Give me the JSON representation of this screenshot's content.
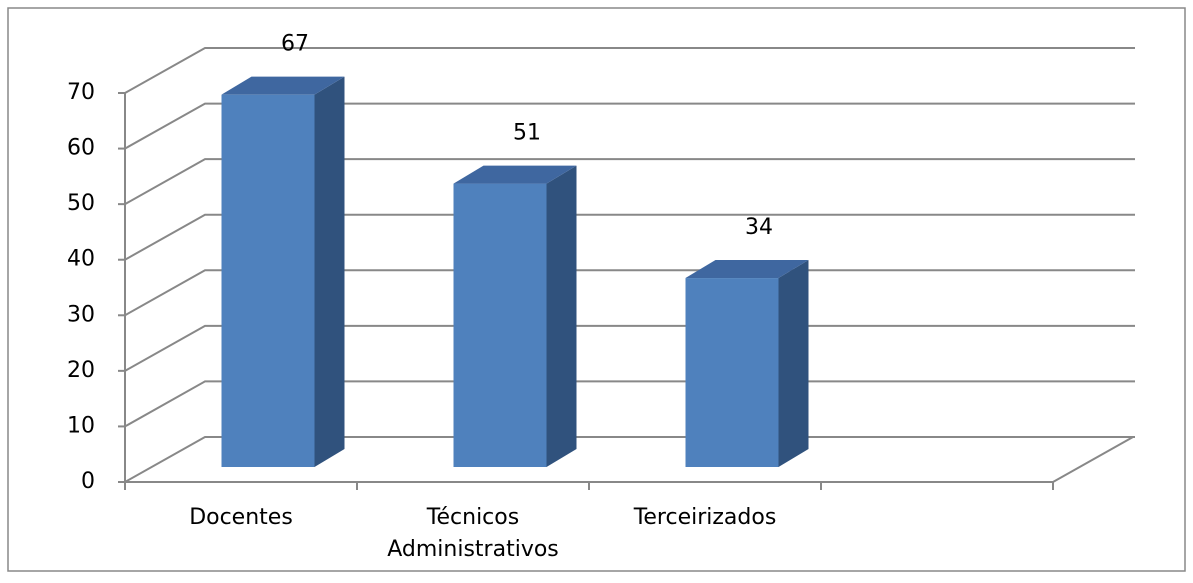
{
  "chart_data": {
    "type": "bar3d",
    "categories": [
      "Docentes",
      [
        "Técnicos",
        "Administrativos"
      ],
      "Terceirizados",
      null
    ],
    "values": [
      67,
      51,
      34,
      null
    ],
    "color": "#4f81bd",
    "ylim": [
      0,
      70
    ],
    "yticks": [
      0,
      10,
      20,
      30,
      40,
      50,
      60,
      70
    ],
    "grid": true
  }
}
